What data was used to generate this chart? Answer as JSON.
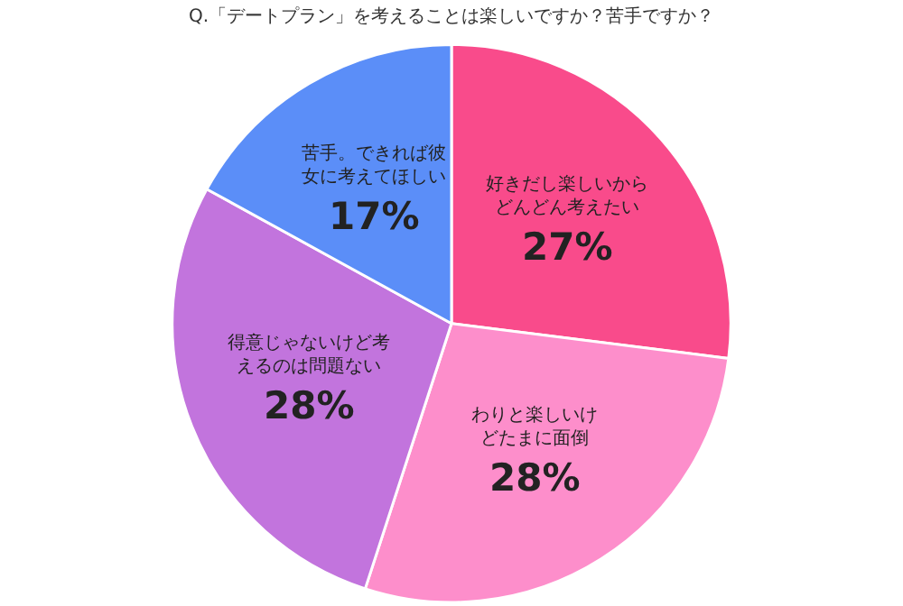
{
  "chart_data": {
    "type": "pie",
    "title": "Q.「デートプラン」を考えることは楽しいですか？苦手ですか？",
    "categories": [
      "好きだし楽しいからどんどん考えたい",
      "わりと楽しいけどたまに面倒",
      "得意じゃないけど考えるのは問題ない",
      "苦手。できれば彼女に考えてほしい"
    ],
    "values": [
      27,
      28,
      28,
      17
    ],
    "value_labels": [
      "27%",
      "28%",
      "28%",
      "17%"
    ],
    "colors": [
      "#f94b8b",
      "#fd8ecb",
      "#c274dd",
      "#5b8ef8"
    ],
    "legend": false
  }
}
